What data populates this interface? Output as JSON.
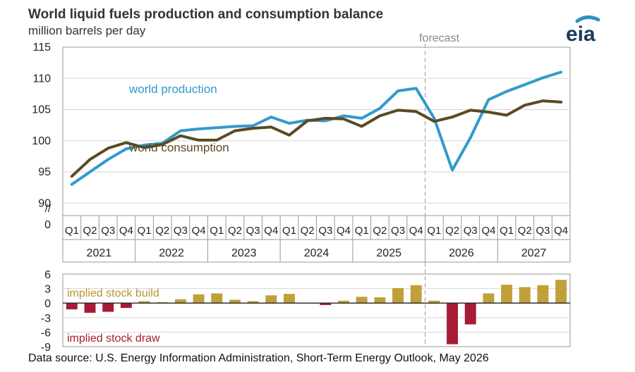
{
  "title": "World liquid fuels production and consumption balance",
  "subtitle": "million barrels per day",
  "source": "Data source: U.S. Energy Information Administration, Short-Term Energy Outlook, May 2026",
  "logo_text": "eia",
  "colors": {
    "production": "#3399cc",
    "consumption": "#5a4a23",
    "build": "#c0a03a",
    "draw": "#a61c35",
    "grid": "#d6d6d6",
    "forecast": "#aaaaaa"
  },
  "chart_data": [
    {
      "type": "line",
      "forecast_label": "forecast",
      "forecast_start": "2026 Q1",
      "axis_break": "//",
      "y_ticks": [
        0,
        90,
        95,
        100,
        105,
        110,
        115
      ],
      "ylim": [
        88,
        115
      ],
      "quarters": [
        "Q1",
        "Q2",
        "Q3",
        "Q4",
        "Q1",
        "Q2",
        "Q3",
        "Q4",
        "Q1",
        "Q2",
        "Q3",
        "Q4",
        "Q1",
        "Q2",
        "Q3",
        "Q4",
        "Q1",
        "Q2",
        "Q3",
        "Q4",
        "Q1",
        "Q2",
        "Q3",
        "Q4",
        "Q1",
        "Q2",
        "Q3",
        "Q4"
      ],
      "years": [
        "2021",
        "2022",
        "2023",
        "2024",
        "2025",
        "2026",
        "2027"
      ],
      "series": [
        {
          "name": "world production",
          "key": "production",
          "values": [
            93.0,
            95.0,
            97.0,
            98.7,
            99.3,
            99.6,
            101.6,
            101.9,
            102.1,
            102.3,
            102.4,
            103.8,
            102.8,
            103.3,
            103.2,
            104.0,
            103.6,
            105.2,
            108.0,
            108.4,
            103.6,
            95.3,
            100.5,
            106.6,
            107.9,
            109.0,
            110.1,
            111.0
          ]
        },
        {
          "name": "world consumption",
          "key": "consumption",
          "values": [
            94.3,
            97.0,
            98.8,
            99.7,
            98.9,
            99.4,
            100.8,
            100.1,
            100.1,
            101.6,
            102.0,
            102.2,
            100.9,
            103.2,
            103.6,
            103.5,
            102.3,
            104.0,
            104.9,
            104.7,
            103.1,
            103.8,
            104.9,
            104.6,
            104.1,
            105.7,
            106.4,
            106.2
          ]
        }
      ]
    },
    {
      "type": "bar",
      "y_ticks": [
        6,
        3,
        0,
        -3,
        -6,
        -9
      ],
      "ylim": [
        -9,
        6
      ],
      "build_label": "implied stock  build",
      "draw_label": "implied stock draw",
      "values": [
        -1.3,
        -2.0,
        -1.8,
        -1.0,
        0.4,
        0.2,
        0.8,
        1.8,
        2.0,
        0.7,
        0.4,
        1.6,
        1.9,
        0.1,
        -0.4,
        0.5,
        1.3,
        1.2,
        3.1,
        3.7,
        0.5,
        -8.5,
        -4.4,
        2.0,
        3.8,
        3.3,
        3.7,
        4.8
      ]
    }
  ]
}
